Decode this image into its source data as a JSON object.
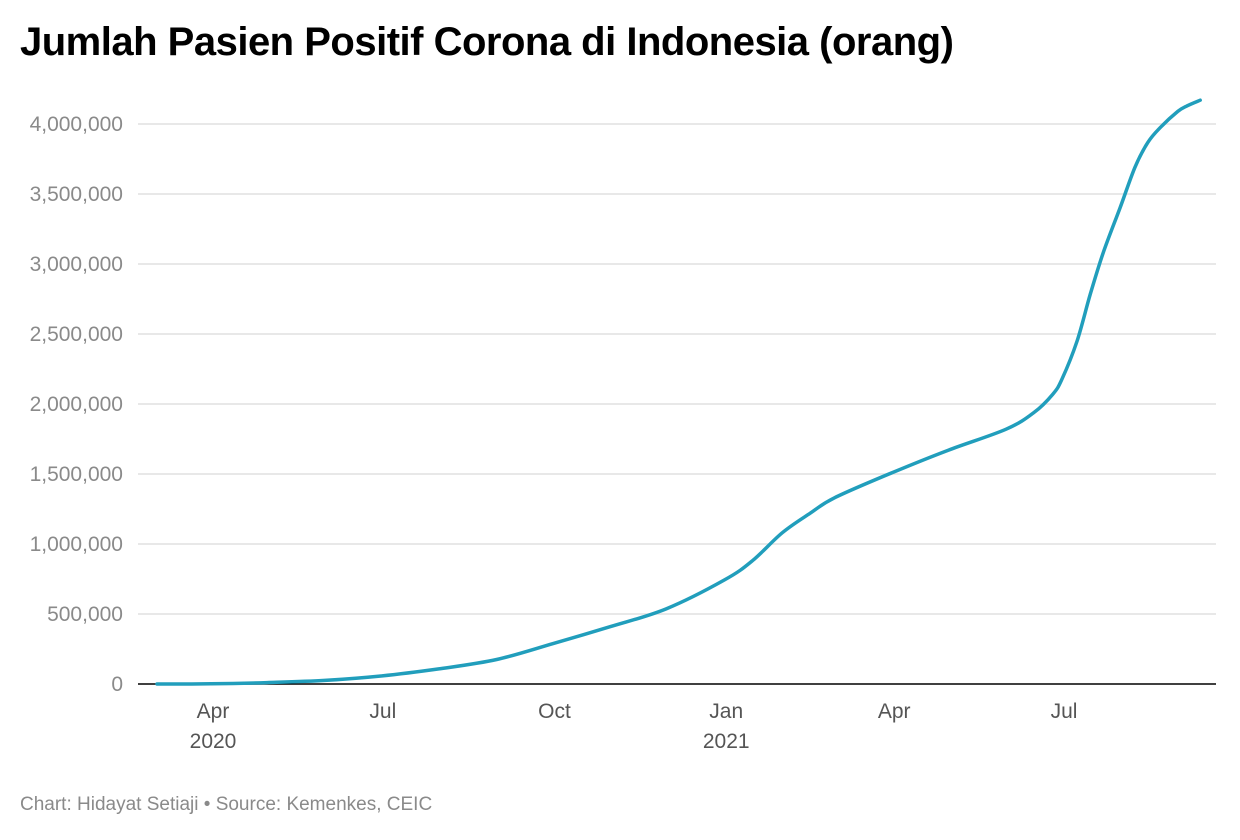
{
  "title": "Jumlah Pasien Positif Corona di Indonesia (orang)",
  "footer": {
    "chart_by": "Chart: Hidayat Setiaji",
    "separator": " • ",
    "source": "Source: Kemenkes, CEIC"
  },
  "colors": {
    "line": "#219ebc",
    "grid": "#e1e1e1",
    "axis": "#000000"
  },
  "chart_data": {
    "type": "line",
    "title": "Jumlah Pasien Positif Corona di Indonesia (orang)",
    "xlabel": "",
    "ylabel": "",
    "grid": true,
    "legend": "none",
    "xlim": [
      "2020-03-01",
      "2021-08-31"
    ],
    "ylim": [
      0,
      4200000
    ],
    "y_ticks": [
      0,
      500000,
      1000000,
      1500000,
      2000000,
      2500000,
      3000000,
      3500000,
      4000000
    ],
    "y_tick_labels": [
      "0",
      "500,000",
      "1,000,000",
      "1,500,000",
      "2,000,000",
      "2,500,000",
      "3,000,000",
      "3,500,000",
      "4,000,000"
    ],
    "x_ticks": [
      {
        "date": "2020-04-01",
        "label": "Apr",
        "year": "2020"
      },
      {
        "date": "2020-07-01",
        "label": "Jul",
        "year": ""
      },
      {
        "date": "2020-10-01",
        "label": "Oct",
        "year": ""
      },
      {
        "date": "2021-01-01",
        "label": "Jan",
        "year": "2021"
      },
      {
        "date": "2021-04-01",
        "label": "Apr",
        "year": ""
      },
      {
        "date": "2021-07-01",
        "label": "Jul",
        "year": ""
      }
    ],
    "series": [
      {
        "points": [
          {
            "x": "2020-03-02",
            "y": 2
          },
          {
            "x": "2020-03-31",
            "y": 1500
          },
          {
            "x": "2020-04-30",
            "y": 10000
          },
          {
            "x": "2020-05-31",
            "y": 26000
          },
          {
            "x": "2020-06-30",
            "y": 57000
          },
          {
            "x": "2020-07-31",
            "y": 108000
          },
          {
            "x": "2020-08-31",
            "y": 175000
          },
          {
            "x": "2020-09-30",
            "y": 288000
          },
          {
            "x": "2020-10-31",
            "y": 410000
          },
          {
            "x": "2020-11-30",
            "y": 538000
          },
          {
            "x": "2020-12-31",
            "y": 743000
          },
          {
            "x": "2021-01-15",
            "y": 880000
          },
          {
            "x": "2021-01-31",
            "y": 1080000
          },
          {
            "x": "2021-02-15",
            "y": 1220000
          },
          {
            "x": "2021-02-28",
            "y": 1330000
          },
          {
            "x": "2021-03-31",
            "y": 1510000
          },
          {
            "x": "2021-04-30",
            "y": 1670000
          },
          {
            "x": "2021-05-31",
            "y": 1820000
          },
          {
            "x": "2021-06-15",
            "y": 1940000
          },
          {
            "x": "2021-06-25",
            "y": 2070000
          },
          {
            "x": "2021-06-30",
            "y": 2180000
          },
          {
            "x": "2021-07-08",
            "y": 2450000
          },
          {
            "x": "2021-07-15",
            "y": 2780000
          },
          {
            "x": "2021-07-22",
            "y": 3080000
          },
          {
            "x": "2021-07-31",
            "y": 3400000
          },
          {
            "x": "2021-08-08",
            "y": 3690000
          },
          {
            "x": "2021-08-15",
            "y": 3870000
          },
          {
            "x": "2021-08-22",
            "y": 3980000
          },
          {
            "x": "2021-08-31",
            "y": 4090000
          },
          {
            "x": "2021-09-05",
            "y": 4130000
          },
          {
            "x": "2021-09-12",
            "y": 4170000
          }
        ]
      }
    ]
  }
}
